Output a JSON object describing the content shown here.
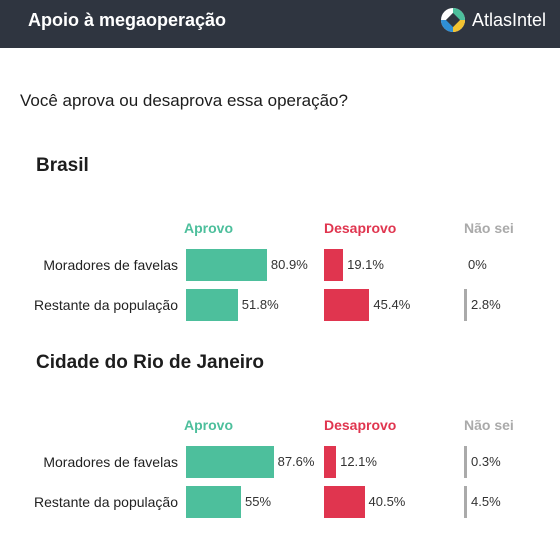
{
  "header": {
    "title": "Apoio à megaoperação",
    "brand": "AtlasIntel",
    "brand_icon": "atlasintel-logo-icon"
  },
  "question": "Você aprova ou desaprova essa operação?",
  "colors": {
    "header_bg": "#2f3540",
    "aprovo": "#4dbf9c",
    "desaprovo": "#e0354f",
    "nao_sei": "#aaaaaa"
  },
  "chart_data": [
    {
      "type": "bar",
      "title": "Brasil",
      "categories": [
        "Moradores de favelas",
        "Restante da população"
      ],
      "series": [
        {
          "name": "Aprovo",
          "values": [
            80.9,
            51.8
          ],
          "labels": [
            "80.9%",
            "51.8%"
          ]
        },
        {
          "name": "Desaprovo",
          "values": [
            19.1,
            45.4
          ],
          "labels": [
            "19.1%",
            "45.4%"
          ]
        },
        {
          "name": "Não sei",
          "values": [
            0,
            2.8
          ],
          "labels": [
            "0%",
            "2.8%"
          ]
        }
      ]
    },
    {
      "type": "bar",
      "title": "Cidade do Rio de Janeiro",
      "categories": [
        "Moradores de favelas",
        "Restante da população"
      ],
      "series": [
        {
          "name": "Aprovo",
          "values": [
            87.6,
            55
          ],
          "labels": [
            "87.6%",
            "55%"
          ]
        },
        {
          "name": "Desaprovo",
          "values": [
            12.1,
            40.5
          ],
          "labels": [
            "12.1%",
            "40.5%"
          ]
        },
        {
          "name": "Não sei",
          "values": [
            0.3,
            4.5
          ],
          "labels": [
            "0.3%",
            "4.5%"
          ]
        }
      ]
    }
  ]
}
